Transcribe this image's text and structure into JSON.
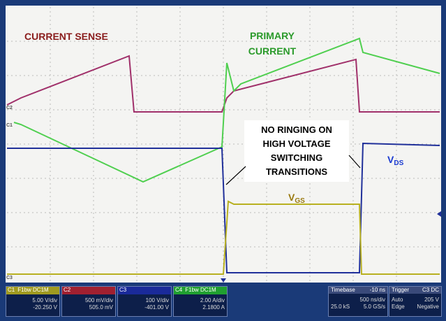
{
  "annotations": {
    "current_sense": "CURRENT SENSE",
    "primary_current": [
      "PRIMARY",
      "CURRENT"
    ],
    "no_ringing": [
      "NO RINGING ON",
      "HIGH VOLTAGE",
      "SWITCHING",
      "TRANSITIONS"
    ],
    "vds": {
      "main": "V",
      "sub": "DS"
    },
    "vgs": {
      "main": "V",
      "sub": "GS"
    }
  },
  "markers": {
    "c1": "C1",
    "c2": "C2",
    "c3": "C3"
  },
  "channels": [
    {
      "name": "C1",
      "tag": "F1bw DC1M",
      "scale": "5.00 V/div",
      "offset": "-20.250 V"
    },
    {
      "name": "C2",
      "tag": "",
      "scale": "500 mV/div",
      "offset": "505.0 mV"
    },
    {
      "name": "C3",
      "tag": "",
      "scale": "100 V/div",
      "offset": "-401.00 V"
    },
    {
      "name": "C4",
      "tag": "F1bw DC1M",
      "scale": "2.00 A/div",
      "offset": "2.1800 A"
    }
  ],
  "timebase": {
    "label": "Timebase",
    "delay": "-10 ns",
    "rows": [
      [
        "",
        "500 ns/div"
      ],
      [
        "25.0 kS",
        "5.0 GS/s"
      ]
    ]
  },
  "trigger": {
    "label": "Trigger",
    "source": "C3 DC",
    "rows": [
      [
        "Auto",
        "205 V"
      ],
      [
        "Edge",
        "Negative"
      ]
    ]
  }
}
